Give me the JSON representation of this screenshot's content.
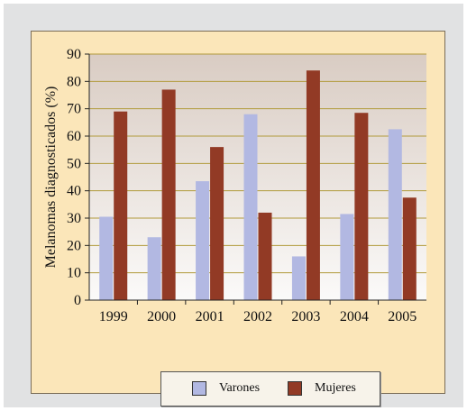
{
  "chart_data": {
    "type": "bar",
    "categories": [
      "1999",
      "2000",
      "2001",
      "2002",
      "2003",
      "2004",
      "2005"
    ],
    "series": [
      {
        "name": "Varones",
        "values": [
          30.5,
          23,
          43.5,
          68,
          16,
          31.5,
          62.5
        ],
        "color": "#b2b8e2"
      },
      {
        "name": "Mujeres",
        "values": [
          69,
          77,
          56,
          32,
          84,
          68.5,
          37.5
        ],
        "color": "#923a25"
      }
    ],
    "ylabel": "Melanomas diagnosticados (%)",
    "xlabel": "",
    "ylim": [
      0,
      90
    ],
    "yticks": [
      0,
      10,
      20,
      30,
      40,
      50,
      60,
      70,
      80,
      90
    ],
    "grid": true,
    "legend_position": "bottom",
    "colors": {
      "background": "#fbe6b9",
      "gridline": "#b19a3a",
      "plot_gradient_top": "#d9ccc3",
      "plot_gradient_bottom": "#fbfaf9"
    }
  }
}
